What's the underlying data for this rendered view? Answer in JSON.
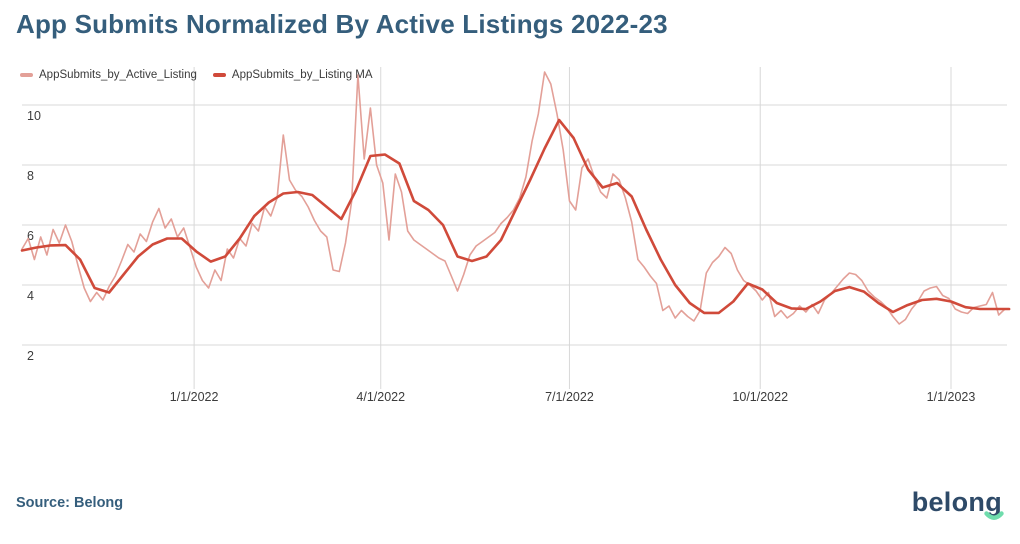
{
  "header": {
    "title": "App Submits Normalized By Active Listings 2022-23"
  },
  "legend": {
    "items": [
      {
        "label": "AppSubmits_by_Active_Listing",
        "color": "#E3A098"
      },
      {
        "label": "AppSubmits_by_Listing MA",
        "color": "#D04A3A"
      }
    ]
  },
  "footer": {
    "source_label": "Source: Belong",
    "logo_text": "belong",
    "logo_accent_color": "#6FDCAC"
  },
  "colors": {
    "title": "#355E7C",
    "gridline": "#D8D8D8",
    "tick_label": "#3C3C3C",
    "background": "#FFFFFF"
  },
  "chart_data": {
    "type": "line",
    "title": "App Submits Normalized By Active Listings 2022-23",
    "xlabel": "",
    "ylabel": "",
    "grid": true,
    "legend_position": "top-left",
    "start_date": "2021-10-10",
    "end_date": "2023-01-28",
    "x_unit": "days_since_start",
    "x_ticks": [
      {
        "day": 83,
        "label": "1/1/2022"
      },
      {
        "day": 173,
        "label": "4/1/2022"
      },
      {
        "day": 264,
        "label": "7/1/2022"
      },
      {
        "day": 356,
        "label": "10/1/2022"
      },
      {
        "day": 448,
        "label": "1/1/2023"
      }
    ],
    "y_ticks": [
      2,
      4,
      6,
      8,
      10
    ],
    "ylim": [
      0.67,
      11.27
    ],
    "xlim_days": [
      0,
      476
    ],
    "series": [
      {
        "name": "AppSubmits_by_Active_Listing",
        "color": "#E3A098",
        "width": 1.6,
        "step_days": 3,
        "values": [
          5.2,
          5.55,
          4.85,
          5.6,
          5.0,
          5.85,
          5.4,
          6.0,
          5.45,
          4.65,
          3.9,
          3.45,
          3.75,
          3.5,
          3.95,
          4.3,
          4.8,
          5.35,
          5.1,
          5.7,
          5.45,
          6.1,
          6.55,
          5.9,
          6.2,
          5.6,
          5.9,
          5.25,
          4.6,
          4.15,
          3.9,
          4.5,
          4.15,
          5.2,
          4.9,
          5.55,
          5.3,
          6.05,
          5.8,
          6.6,
          6.3,
          6.9,
          9.0,
          7.5,
          7.15,
          6.95,
          6.6,
          6.15,
          5.8,
          5.6,
          4.5,
          4.45,
          5.4,
          6.8,
          11.0,
          8.2,
          9.9,
          8.0,
          7.4,
          5.5,
          7.7,
          7.1,
          5.8,
          5.5,
          5.35,
          5.2,
          5.05,
          4.9,
          4.8,
          4.3,
          3.8,
          4.35,
          5.0,
          5.3,
          5.45,
          5.6,
          5.75,
          6.05,
          6.25,
          6.5,
          6.9,
          7.6,
          8.8,
          9.7,
          11.1,
          10.7,
          9.7,
          8.5,
          6.8,
          6.5,
          7.9,
          8.2,
          7.6,
          7.1,
          6.9,
          7.7,
          7.5,
          6.9,
          6.1,
          4.85,
          4.6,
          4.3,
          4.05,
          3.15,
          3.3,
          2.9,
          3.15,
          2.95,
          2.8,
          3.15,
          4.4,
          4.75,
          4.95,
          5.25,
          5.05,
          4.5,
          4.15,
          4.0,
          3.8,
          3.5,
          3.75,
          2.95,
          3.15,
          2.9,
          3.05,
          3.3,
          3.1,
          3.35,
          3.05,
          3.5,
          3.7,
          3.95,
          4.2,
          4.4,
          4.35,
          4.15,
          3.8,
          3.6,
          3.45,
          3.25,
          2.95,
          2.7,
          2.85,
          3.2,
          3.45,
          3.8,
          3.9,
          3.95,
          3.65,
          3.55,
          3.2,
          3.1,
          3.05,
          3.25,
          3.3,
          3.35,
          3.75,
          3.0,
          3.2
        ]
      },
      {
        "name": "AppSubmits_by_Listing MA",
        "color": "#D04A3A",
        "width": 2.6,
        "step_days": 7,
        "values": [
          5.15,
          5.25,
          5.32,
          5.33,
          4.85,
          3.9,
          3.75,
          4.35,
          4.95,
          5.35,
          5.55,
          5.55,
          5.12,
          4.78,
          4.95,
          5.55,
          6.3,
          6.75,
          7.05,
          7.1,
          7.0,
          6.6,
          6.2,
          7.15,
          8.3,
          8.35,
          8.05,
          6.8,
          6.5,
          6.0,
          4.95,
          4.8,
          4.95,
          5.5,
          6.5,
          7.5,
          8.55,
          9.5,
          8.9,
          7.85,
          7.25,
          7.4,
          6.95,
          5.85,
          4.85,
          4.0,
          3.4,
          3.07,
          3.07,
          3.45,
          4.05,
          3.85,
          3.4,
          3.22,
          3.2,
          3.45,
          3.8,
          3.93,
          3.78,
          3.4,
          3.1,
          3.33,
          3.5,
          3.54,
          3.45,
          3.26,
          3.2,
          3.2,
          3.2
        ]
      }
    ]
  }
}
